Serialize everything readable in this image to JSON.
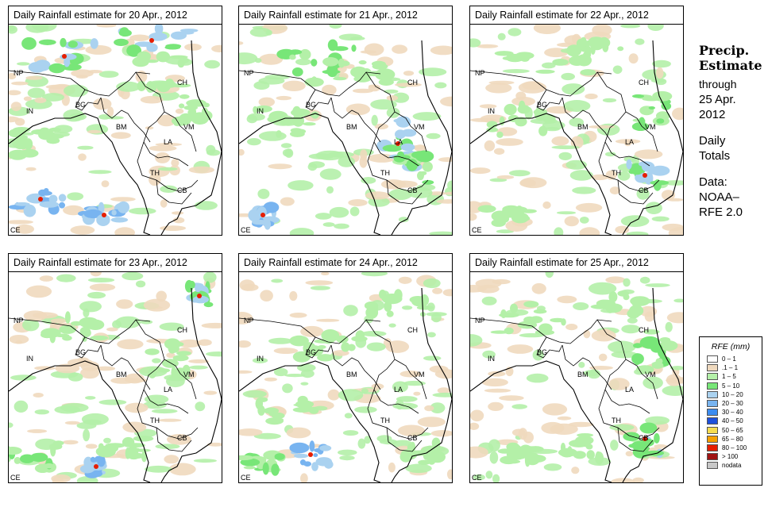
{
  "panels": [
    {
      "title": "Daily Rainfall estimate for  20 Apr., 2012"
    },
    {
      "title": "Daily Rainfall estimate for  21 Apr., 2012"
    },
    {
      "title": "Daily Rainfall estimate for  22 Apr., 2012"
    },
    {
      "title": "Daily Rainfall estimate for  23 Apr., 2012"
    },
    {
      "title": "Daily Rainfall estimate for  24 Apr., 2012"
    },
    {
      "title": "Daily Rainfall estimate for  25 Apr., 2012"
    }
  ],
  "region_labels": [
    "NP",
    "CH",
    "IN",
    "BG",
    "BM",
    "VM",
    "LA",
    "TH",
    "CB",
    "CE"
  ],
  "side": {
    "title_line1": "Precip.",
    "title_line2": "Estimate",
    "through": "through",
    "date_line1": "25 Apr.",
    "date_line2": "2012",
    "daily1": "Daily",
    "daily2": "Totals",
    "data1": "Data:",
    "data2": "NOAA–",
    "data3": "RFE 2.0"
  },
  "legend": {
    "title": "RFE (mm)",
    "items": [
      {
        "label": "0 – 1",
        "color": "#ffffff"
      },
      {
        "label": ".1 – 1",
        "color": "#efd9be"
      },
      {
        "label": "1 – 5",
        "color": "#b4f0a8"
      },
      {
        "label": "5 – 10",
        "color": "#78e678"
      },
      {
        "label": "10 – 20",
        "color": "#aad2f0"
      },
      {
        "label": "20 – 30",
        "color": "#78b4f0"
      },
      {
        "label": "30 – 40",
        "color": "#3c8cf0"
      },
      {
        "label": "40 – 50",
        "color": "#1e50dc"
      },
      {
        "label": "50 – 65",
        "color": "#f5dc50"
      },
      {
        "label": "65 – 80",
        "color": "#f5a000"
      },
      {
        "label": "80 – 100",
        "color": "#e61e00"
      },
      {
        "label": "> 100",
        "color": "#a01414"
      },
      {
        "label": "nodata",
        "color": "#c8c8c8"
      }
    ]
  }
}
